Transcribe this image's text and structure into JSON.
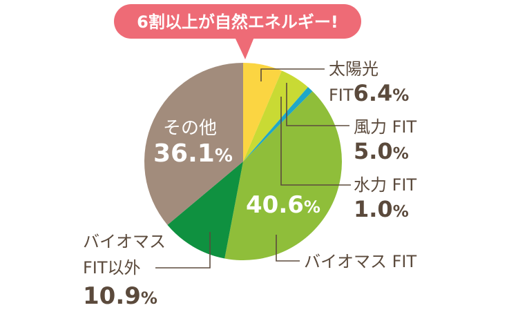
{
  "callout": {
    "text": "6割以上が自然エネルギー!",
    "color": "#ee6b76",
    "text_color": "#ffffff"
  },
  "label_color": "#5b4a3c",
  "leader_color": "#5b4a3c",
  "chart_data": {
    "type": "pie",
    "title": "",
    "start": "12 o'clock",
    "direction": "clockwise",
    "slices": [
      {
        "name": "太陽光 FIT",
        "value": 6.4,
        "color": "#fbd542",
        "label_lines": [
          "太陽光"
        ],
        "label_prefix": "FIT",
        "value_text": "6.4",
        "unit": "%"
      },
      {
        "name": "風力 FIT",
        "value": 5.0,
        "color": "#c9da34",
        "label_lines": [
          "風力 FIT"
        ],
        "value_text": "5.0",
        "unit": "%"
      },
      {
        "name": "水力 FIT",
        "value": 1.0,
        "color": "#1fa7c8",
        "label_lines": [
          "水力 FIT"
        ],
        "value_text": "1.0",
        "unit": "%"
      },
      {
        "name": "バイオマス FIT",
        "value": 40.6,
        "color": "#8fbe3a",
        "label_lines": [
          "バイオマス FIT"
        ],
        "value_text": "40.6",
        "unit": "%"
      },
      {
        "name": "バイオマスFIT以外",
        "value": 10.9,
        "color": "#0f9140",
        "label_lines": [
          "バイオマス",
          "FIT以外"
        ],
        "value_text": "10.9",
        "unit": "%"
      },
      {
        "name": "その他",
        "value": 36.1,
        "color": "#a28c7c",
        "label_lines": [
          "その他"
        ],
        "value_text": "36.1",
        "unit": "%"
      }
    ]
  }
}
